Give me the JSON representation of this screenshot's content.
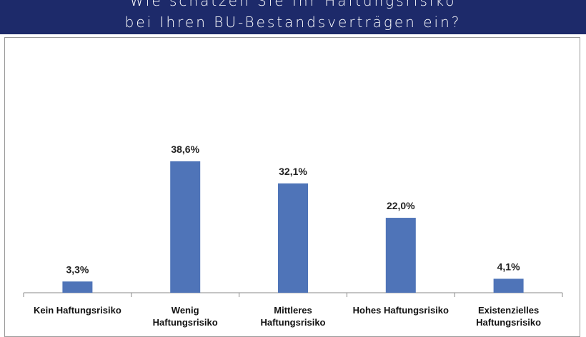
{
  "chart_data": {
    "type": "bar",
    "title": [
      "Wie schätzen Sie Ihr Haftungsrisiko",
      "bei Ihren BU-Bestandsverträgen ein?"
    ],
    "categories": [
      "Kein Haftungsrisiko",
      "Wenig\nHaftungsrisiko",
      "Mittleres\nHaftungsrisiko",
      "Hohes Haftungsrisiko",
      "Existenzielles\nHaftungsrisiko"
    ],
    "values": [
      3.3,
      38.6,
      32.1,
      22.0,
      4.1
    ],
    "value_labels": [
      "3,3%",
      "38,6%",
      "32,1%",
      "22,0%",
      "4,1%"
    ],
    "color": "#4f74b8"
  }
}
